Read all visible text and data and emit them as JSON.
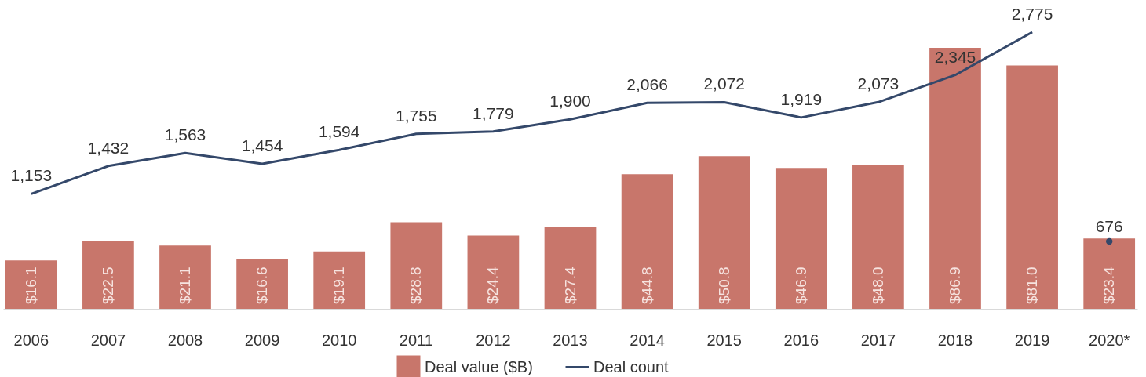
{
  "chart_data": {
    "type": "bar",
    "categories": [
      "2006",
      "2007",
      "2008",
      "2009",
      "2010",
      "2011",
      "2012",
      "2013",
      "2014",
      "2015",
      "2016",
      "2017",
      "2018",
      "2019",
      "2020*"
    ],
    "series": [
      {
        "name": "Deal value ($B)",
        "color": "#c8766b",
        "values": [
          16.1,
          22.5,
          21.1,
          16.6,
          19.1,
          28.8,
          24.4,
          27.4,
          44.8,
          50.8,
          46.9,
          48.0,
          86.9,
          81.0,
          23.4
        ],
        "value_labels": [
          "$16.1",
          "$22.5",
          "$21.1",
          "$16.6",
          "$19.1",
          "$28.8",
          "$24.4",
          "$27.4",
          "$44.8",
          "$50.8",
          "$46.9",
          "$48.0",
          "$86.9",
          "$81.0",
          "$23.4"
        ]
      },
      {
        "name": "Deal count",
        "type": "line",
        "axis": "y2",
        "color": "#34486a",
        "marker": "none",
        "line_style": "solid",
        "values": [
          1153,
          1432,
          1563,
          1454,
          1594,
          1755,
          1779,
          1900,
          2066,
          2072,
          1919,
          2073,
          2345,
          2775,
          null
        ],
        "value_labels": [
          "1,153",
          "1,432",
          "1,563",
          "1,454",
          "1,594",
          "1,755",
          "1,779",
          "1,900",
          "2,066",
          "2,072",
          "1,919",
          "2,073",
          "2,345",
          "2,775",
          null
        ]
      },
      {
        "type": "scatter",
        "axis": "y2",
        "color": "#34486a",
        "marker": "circle",
        "values": [
          null,
          null,
          null,
          null,
          null,
          null,
          null,
          null,
          null,
          null,
          null,
          null,
          null,
          null,
          676
        ],
        "value_labels": [
          null,
          null,
          null,
          null,
          null,
          null,
          null,
          null,
          null,
          null,
          null,
          null,
          null,
          null,
          "676"
        ]
      }
    ],
    "legend": "bottom",
    "grid": false
  }
}
